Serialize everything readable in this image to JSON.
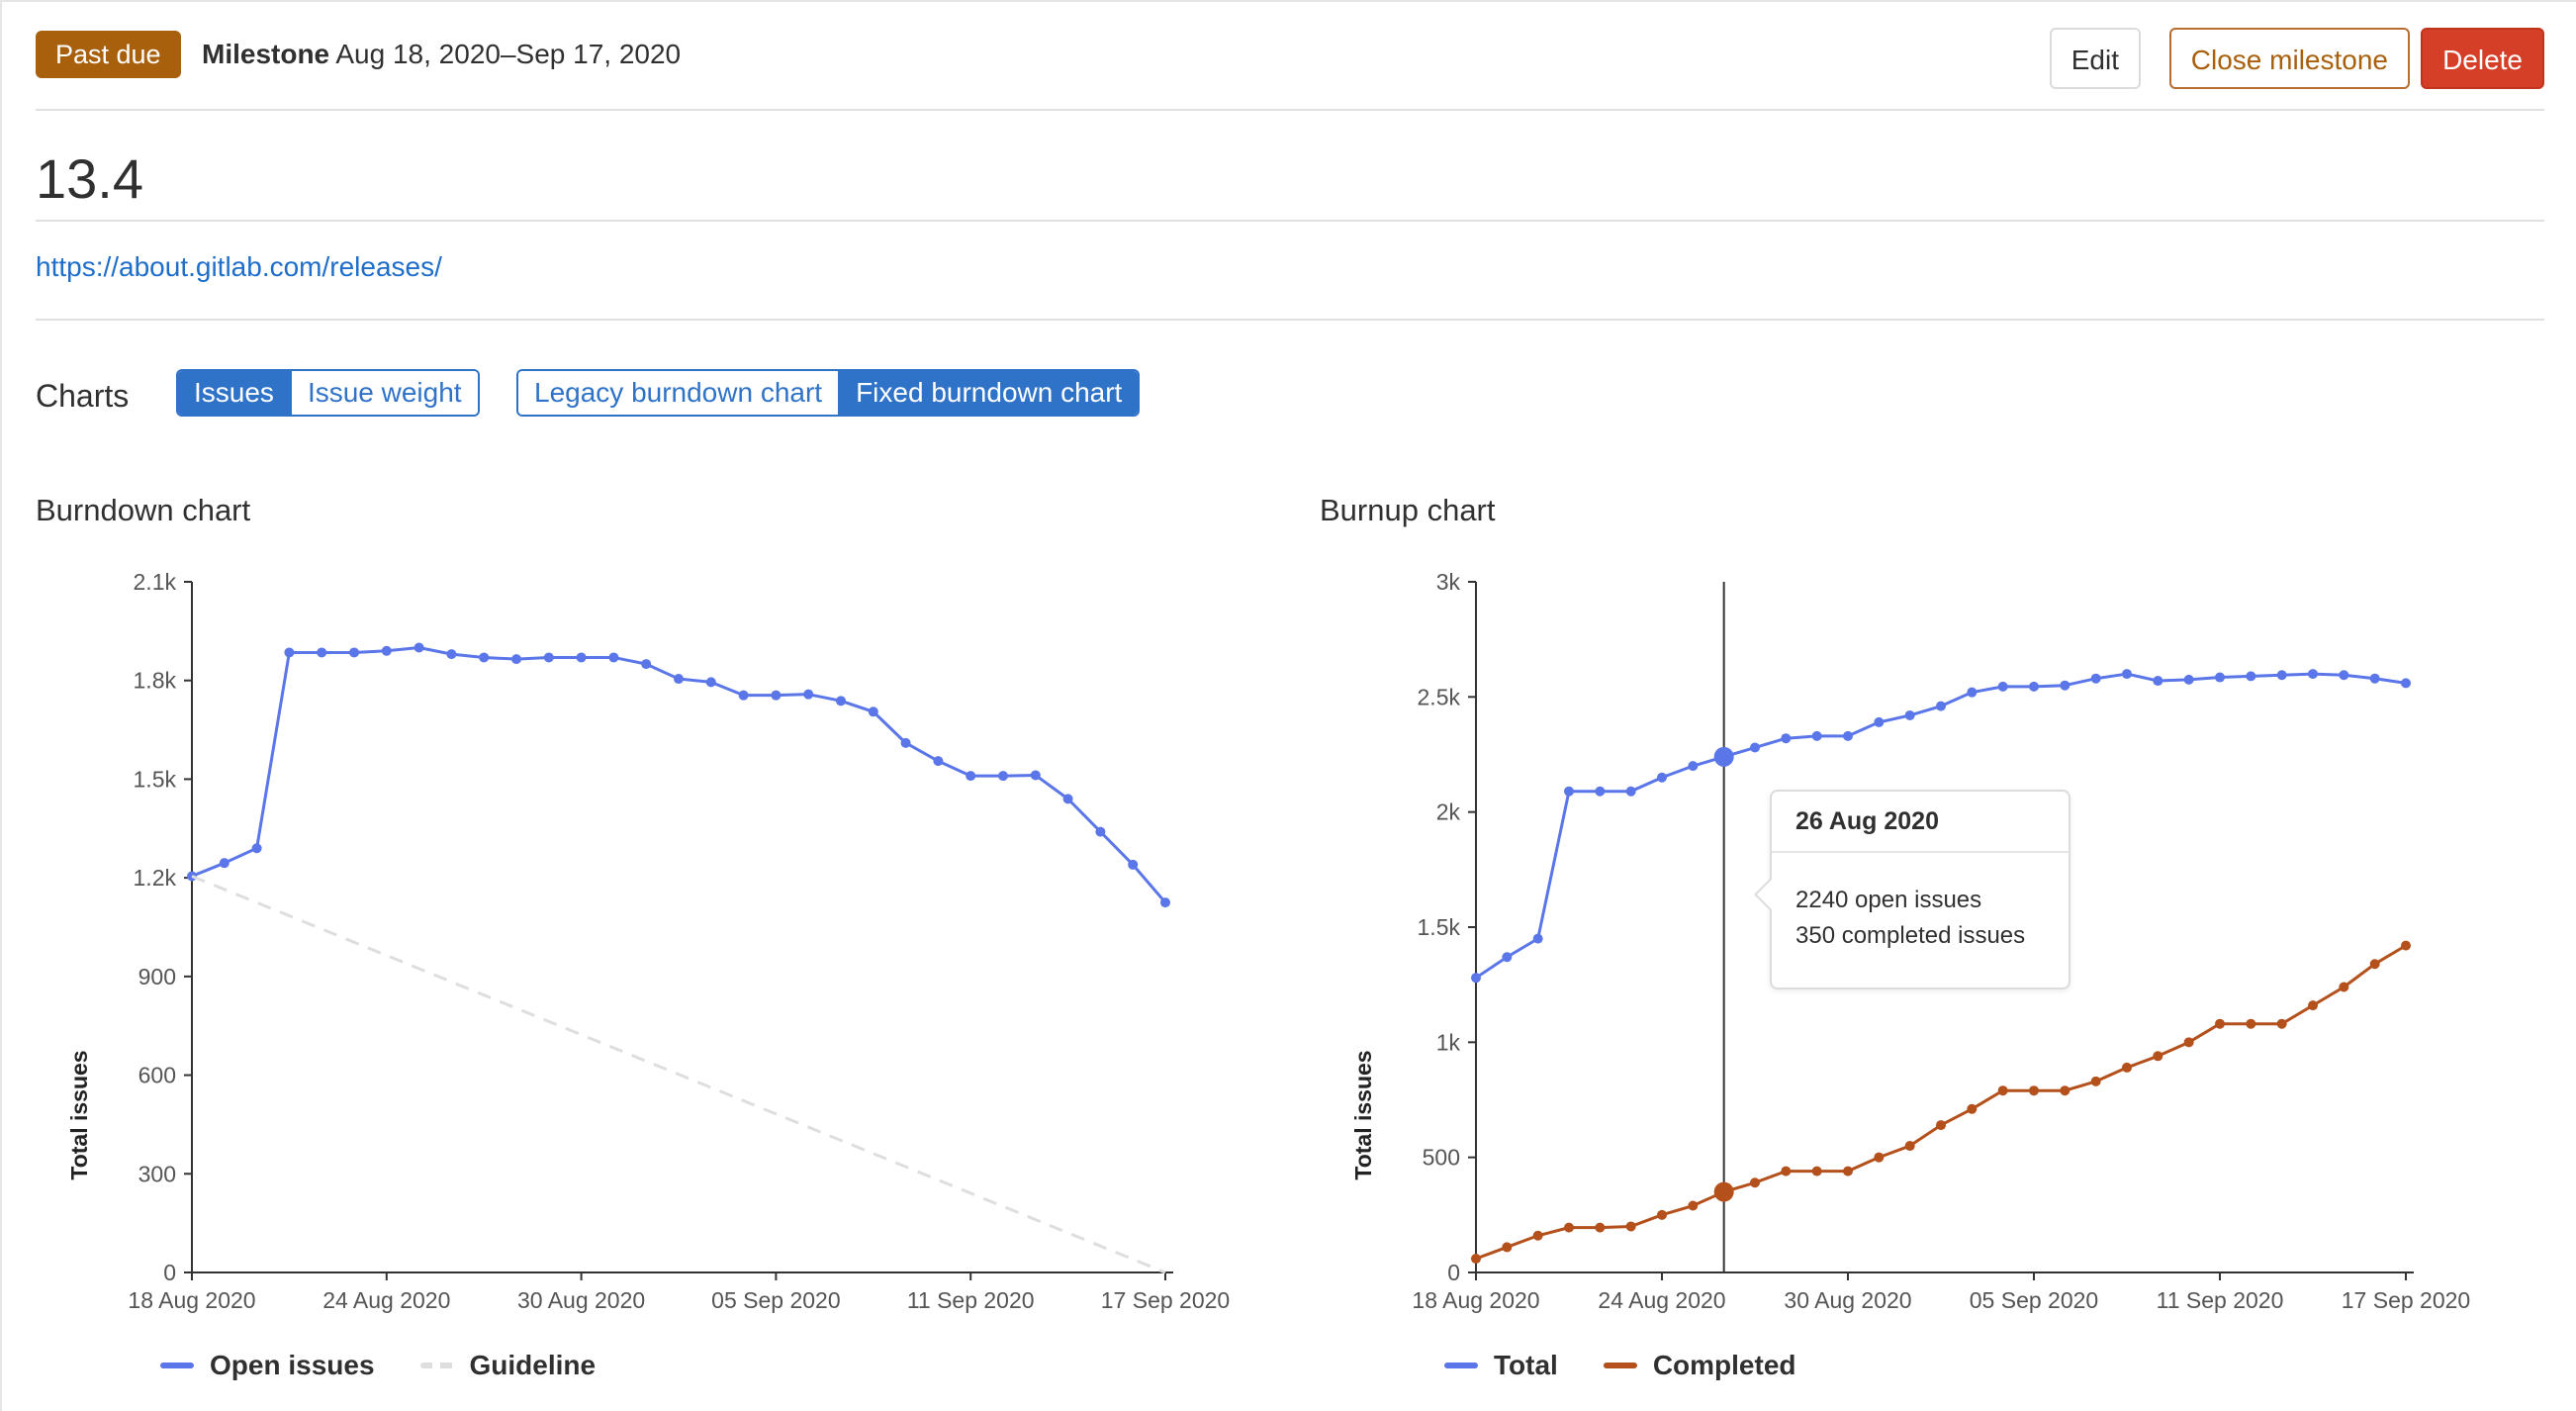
{
  "header": {
    "badge": "Past due",
    "milestone_label": "Milestone",
    "milestone_dates": "Aug 18, 2020–Sep 17, 2020",
    "edit_label": "Edit",
    "close_label": "Close milestone",
    "delete_label": "Delete"
  },
  "title": "13.4",
  "link": "https://about.gitlab.com/releases/",
  "charts_section": {
    "label": "Charts",
    "metric_toggle": [
      "Issues",
      "Issue weight"
    ],
    "metric_selected": "Issues",
    "chart_toggle": [
      "Legacy burndown chart",
      "Fixed burndown chart"
    ],
    "chart_selected": "Fixed burndown chart"
  },
  "colors": {
    "accent": "#2f73c9",
    "open_issues": "#5b76e8",
    "completed": "#b4501b",
    "guideline": "#dedede",
    "badge": "#a8600d",
    "delete": "#d63f27"
  },
  "tooltip": {
    "date": "26 Aug 2020",
    "open_text": "2240 open issues",
    "completed_text": "350 completed issues"
  },
  "chart_data": [
    {
      "type": "line",
      "title": "Burndown chart",
      "xlabel": "",
      "ylabel": "Total issues",
      "x": [
        "18 Aug 2020",
        "19 Aug 2020",
        "20 Aug 2020",
        "21 Aug 2020",
        "22 Aug 2020",
        "23 Aug 2020",
        "24 Aug 2020",
        "25 Aug 2020",
        "26 Aug 2020",
        "27 Aug 2020",
        "28 Aug 2020",
        "29 Aug 2020",
        "30 Aug 2020",
        "31 Aug 2020",
        "01 Sep 2020",
        "02 Sep 2020",
        "03 Sep 2020",
        "04 Sep 2020",
        "05 Sep 2020",
        "06 Sep 2020",
        "07 Sep 2020",
        "08 Sep 2020",
        "09 Sep 2020",
        "10 Sep 2020",
        "11 Sep 2020",
        "12 Sep 2020",
        "13 Sep 2020",
        "14 Sep 2020",
        "15 Sep 2020",
        "16 Sep 2020",
        "17 Sep 2020"
      ],
      "x_tick_labels": [
        "18 Aug 2020",
        "24 Aug 2020",
        "30 Aug 2020",
        "05 Sep 2020",
        "11 Sep 2020",
        "17 Sep 2020"
      ],
      "y_tick_labels": [
        "0",
        "300",
        "600",
        "900",
        "1.2k",
        "1.5k",
        "1.8k",
        "2.1k"
      ],
      "ylim": [
        0,
        2100
      ],
      "grid": false,
      "legend_position": "bottom-left",
      "series": [
        {
          "name": "Open issues",
          "color": "#5b76e8",
          "values": [
            1205,
            1245,
            1290,
            1885,
            1885,
            1885,
            1890,
            1900,
            1880,
            1870,
            1865,
            1870,
            1870,
            1870,
            1850,
            1805,
            1795,
            1755,
            1755,
            1758,
            1738,
            1705,
            1610,
            1555,
            1510,
            1510,
            1512,
            1440,
            1340,
            1240,
            1125
          ]
        },
        {
          "name": "Guideline",
          "color": "#dedede",
          "dashed": true,
          "values": [
            1205,
            0
          ],
          "x": [
            "18 Aug 2020",
            "17 Sep 2020"
          ]
        }
      ]
    },
    {
      "type": "line",
      "title": "Burnup chart",
      "xlabel": "",
      "ylabel": "Total issues",
      "x": [
        "18 Aug 2020",
        "19 Aug 2020",
        "20 Aug 2020",
        "21 Aug 2020",
        "22 Aug 2020",
        "23 Aug 2020",
        "24 Aug 2020",
        "25 Aug 2020",
        "26 Aug 2020",
        "27 Aug 2020",
        "28 Aug 2020",
        "29 Aug 2020",
        "30 Aug 2020",
        "31 Aug 2020",
        "01 Sep 2020",
        "02 Sep 2020",
        "03 Sep 2020",
        "04 Sep 2020",
        "05 Sep 2020",
        "06 Sep 2020",
        "07 Sep 2020",
        "08 Sep 2020",
        "09 Sep 2020",
        "10 Sep 2020",
        "11 Sep 2020",
        "12 Sep 2020",
        "13 Sep 2020",
        "14 Sep 2020",
        "15 Sep 2020",
        "16 Sep 2020",
        "17 Sep 2020"
      ],
      "x_tick_labels": [
        "18 Aug 2020",
        "24 Aug 2020",
        "30 Aug 2020",
        "05 Sep 2020",
        "11 Sep 2020",
        "17 Sep 2020"
      ],
      "y_tick_labels": [
        "0",
        "500",
        "1k",
        "1.5k",
        "2k",
        "2.5k",
        "3k"
      ],
      "ylim": [
        0,
        3000
      ],
      "grid": false,
      "legend_position": "bottom-left",
      "hover_date": "26 Aug 2020",
      "series": [
        {
          "name": "Total",
          "color": "#5b76e8",
          "values": [
            1280,
            1370,
            1450,
            2090,
            2090,
            2090,
            2150,
            2200,
            2240,
            2280,
            2320,
            2330,
            2330,
            2390,
            2420,
            2460,
            2520,
            2545,
            2545,
            2550,
            2580,
            2600,
            2570,
            2575,
            2585,
            2590,
            2595,
            2600,
            2595,
            2580,
            2560
          ]
        },
        {
          "name": "Completed",
          "color": "#b4501b",
          "values": [
            60,
            110,
            160,
            195,
            195,
            200,
            250,
            290,
            350,
            390,
            440,
            440,
            440,
            500,
            550,
            640,
            710,
            790,
            790,
            790,
            830,
            890,
            940,
            1000,
            1080,
            1080,
            1080,
            1160,
            1240,
            1340,
            1420
          ]
        }
      ]
    }
  ]
}
